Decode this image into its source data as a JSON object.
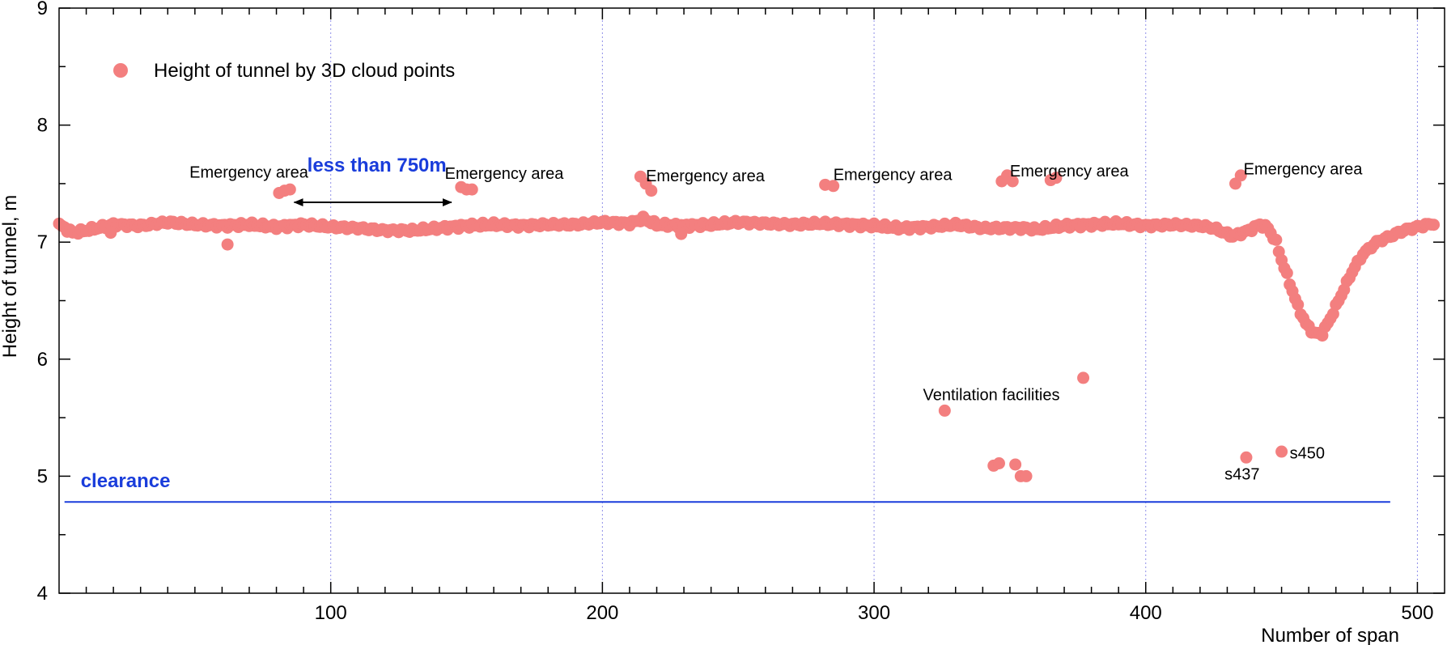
{
  "chart_data": {
    "type": "scatter",
    "ylabel": "Height of tunnel, m",
    "xlabel": "Number of span",
    "xlim": [
      0,
      510
    ],
    "ylim": [
      4,
      9
    ],
    "xticks": [
      100,
      200,
      300,
      400,
      500
    ],
    "yticks": [
      4,
      5,
      6,
      7,
      8,
      9
    ],
    "grid": "vertical dotted lines at major x ticks",
    "legend": {
      "placement": "top-left",
      "entries": [
        "Height of tunnel by 3D cloud points"
      ]
    },
    "colors": {
      "points": "#f37f7f",
      "clearance": "#1a3ddb",
      "annotation_blue": "#1a3ddb",
      "grid": "#8f8fe8"
    },
    "series": [
      {
        "name": "Height of tunnel by 3D cloud points",
        "baseline": [
          [
            0,
            7.15
          ],
          [
            5,
            7.08
          ],
          [
            10,
            7.1
          ],
          [
            20,
            7.15
          ],
          [
            30,
            7.14
          ],
          [
            40,
            7.17
          ],
          [
            50,
            7.15
          ],
          [
            60,
            7.14
          ],
          [
            70,
            7.15
          ],
          [
            80,
            7.13
          ],
          [
            90,
            7.15
          ],
          [
            100,
            7.13
          ],
          [
            110,
            7.12
          ],
          [
            120,
            7.1
          ],
          [
            130,
            7.1
          ],
          [
            140,
            7.12
          ],
          [
            150,
            7.14
          ],
          [
            160,
            7.15
          ],
          [
            170,
            7.14
          ],
          [
            180,
            7.15
          ],
          [
            190,
            7.15
          ],
          [
            200,
            7.17
          ],
          [
            210,
            7.16
          ],
          [
            215,
            7.2
          ],
          [
            220,
            7.15
          ],
          [
            230,
            7.14
          ],
          [
            240,
            7.15
          ],
          [
            250,
            7.17
          ],
          [
            260,
            7.16
          ],
          [
            270,
            7.15
          ],
          [
            280,
            7.16
          ],
          [
            290,
            7.15
          ],
          [
            300,
            7.14
          ],
          [
            310,
            7.12
          ],
          [
            320,
            7.13
          ],
          [
            330,
            7.15
          ],
          [
            340,
            7.12
          ],
          [
            345,
            7.12
          ],
          [
            355,
            7.12
          ],
          [
            360,
            7.11
          ],
          [
            370,
            7.14
          ],
          [
            380,
            7.15
          ],
          [
            390,
            7.16
          ],
          [
            400,
            7.14
          ],
          [
            410,
            7.15
          ],
          [
            420,
            7.14
          ],
          [
            425,
            7.12
          ],
          [
            432,
            7.05
          ],
          [
            438,
            7.1
          ],
          [
            442,
            7.15
          ],
          [
            445,
            7.12
          ],
          [
            448,
            7.0
          ],
          [
            450,
            6.85
          ],
          [
            453,
            6.65
          ],
          [
            456,
            6.45
          ],
          [
            459,
            6.3
          ],
          [
            462,
            6.22
          ],
          [
            465,
            6.22
          ],
          [
            468,
            6.35
          ],
          [
            472,
            6.55
          ],
          [
            476,
            6.75
          ],
          [
            480,
            6.9
          ],
          [
            485,
            7.0
          ],
          [
            490,
            7.05
          ],
          [
            495,
            7.1
          ],
          [
            500,
            7.13
          ],
          [
            506,
            7.16
          ]
        ],
        "extra_points": [
          [
            62,
            6.98
          ],
          [
            81,
            7.42
          ],
          [
            83,
            7.44
          ],
          [
            85,
            7.45
          ],
          [
            148,
            7.47
          ],
          [
            150,
            7.45
          ],
          [
            152,
            7.45
          ],
          [
            214,
            7.56
          ],
          [
            216,
            7.5
          ],
          [
            218,
            7.44
          ],
          [
            229,
            7.07
          ],
          [
            19,
            7.08
          ],
          [
            282,
            7.49
          ],
          [
            285,
            7.48
          ],
          [
            326,
            5.56
          ],
          [
            344,
            5.09
          ],
          [
            346,
            5.11
          ],
          [
            347,
            7.52
          ],
          [
            349,
            7.57
          ],
          [
            351,
            7.52
          ],
          [
            352,
            5.1
          ],
          [
            354,
            5.0
          ],
          [
            356,
            5.0
          ],
          [
            365,
            7.53
          ],
          [
            367,
            7.55
          ],
          [
            377,
            5.84
          ],
          [
            433,
            7.5
          ],
          [
            435,
            7.57
          ],
          [
            437,
            5.16
          ],
          [
            450,
            5.21
          ]
        ]
      }
    ],
    "clearance": {
      "label": "clearance",
      "value": 4.78,
      "x_range": [
        2,
        490
      ]
    },
    "annotations": [
      {
        "text": "Emergency area",
        "x": 48,
        "y": 7.55
      },
      {
        "text": "Emergency area",
        "x": 142,
        "y": 7.54
      },
      {
        "text": "Emergency area",
        "x": 216,
        "y": 7.52
      },
      {
        "text": "Emergency area",
        "x": 285,
        "y": 7.53
      },
      {
        "text": "Emergency area",
        "x": 350,
        "y": 7.56
      },
      {
        "text": "Emergency area",
        "x": 436,
        "y": 7.58
      },
      {
        "text": "Ventilation facilities",
        "x": 318,
        "y": 5.65
      },
      {
        "text": "s437",
        "x": 429,
        "y": 4.97
      },
      {
        "text": "s450",
        "x": 453,
        "y": 5.15
      }
    ],
    "span_annotation": {
      "text": "less than 750m",
      "x_from": 83,
      "x_to": 148,
      "y": 7.34
    }
  }
}
